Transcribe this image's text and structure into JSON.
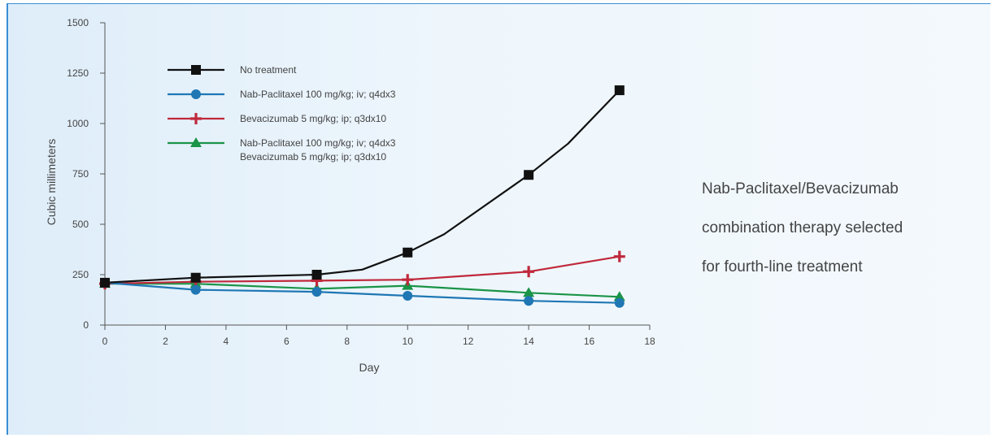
{
  "chart_data": {
    "type": "line",
    "title": "",
    "xlabel": "Day",
    "ylabel": "Cubic millimeters",
    "xlim": [
      0,
      18
    ],
    "ylim": [
      0,
      1500
    ],
    "x_ticks": [
      0,
      2,
      4,
      6,
      8,
      10,
      12,
      14,
      16,
      18
    ],
    "y_ticks": [
      0,
      250,
      500,
      750,
      1000,
      1250,
      1500
    ],
    "grid": false,
    "legend_position": "top-left",
    "series": [
      {
        "name": "No treatment",
        "color": "#111111",
        "marker": "square",
        "x": [
          0,
          3,
          7,
          8.5,
          10,
          11.2,
          14,
          15.3,
          17
        ],
        "y": [
          210,
          235,
          250,
          275,
          360,
          450,
          745,
          900,
          1165
        ],
        "marked": [
          true,
          true,
          true,
          false,
          true,
          false,
          true,
          false,
          true
        ]
      },
      {
        "name": "Nab-Paclitaxel 100 mg/kg; iv; q4dx3",
        "color": "#1f77b4",
        "marker": "circle",
        "x": [
          0,
          3,
          7,
          10,
          14,
          17
        ],
        "y": [
          210,
          175,
          165,
          145,
          120,
          110
        ]
      },
      {
        "name": "Bevacizumab 5 mg/kg; ip; q3dx10",
        "color": "#c0283b",
        "marker": "plus",
        "x": [
          0,
          3,
          7,
          10,
          14,
          17
        ],
        "y": [
          205,
          215,
          220,
          225,
          265,
          340
        ]
      },
      {
        "name": "Nab-Paclitaxel 100 mg/kg; iv; q4dx3",
        "name_line2": "Bevacizumab 5 mg/kg; ip; q3dx10",
        "color": "#1a9447",
        "marker": "triangle",
        "x": [
          0,
          3,
          7,
          10,
          14,
          17
        ],
        "y": [
          205,
          205,
          180,
          195,
          160,
          140
        ]
      }
    ]
  },
  "caption": {
    "line1": "Nab-Paclitaxel/Bevacizumab",
    "line2": "combination therapy selected",
    "line3": "for fourth-line treatment"
  }
}
